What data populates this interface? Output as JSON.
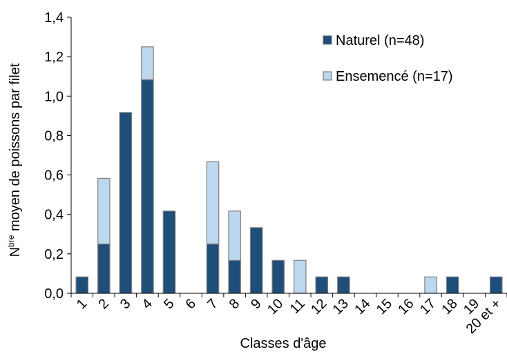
{
  "chart_data": {
    "type": "bar",
    "stacked": true,
    "xlabel": "Classes d'âge",
    "ylabel_prefix": "N",
    "ylabel_superscript": "bre",
    "ylabel_suffix": " moyen de poissons par filet",
    "ylim": [
      0,
      1.4
    ],
    "yticks": [
      "0,0",
      "0,2",
      "0,4",
      "0,6",
      "0,8",
      "1,0",
      "1,2",
      "1,4"
    ],
    "yticks_values": [
      0,
      0.2,
      0.4,
      0.6,
      0.8,
      1.0,
      1.2,
      1.4
    ],
    "grid": false,
    "legend_position": "top-right",
    "categories": [
      "1",
      "2",
      "3",
      "4",
      "5",
      "6",
      "7",
      "8",
      "9",
      "10",
      "11",
      "12",
      "13",
      "14",
      "15",
      "16",
      "17",
      "18",
      "19",
      "20 et +"
    ],
    "series": [
      {
        "name": "Naturel (n=48)",
        "color": "#1F4E79",
        "values": [
          0.083,
          0.25,
          0.917,
          1.083,
          0.417,
          0,
          0.25,
          0.167,
          0.333,
          0.167,
          0,
          0.083,
          0.083,
          0,
          0,
          0,
          0,
          0.083,
          0,
          0.083
        ]
      },
      {
        "name": "Ensemencé (n=17)",
        "color": "#BDD7EE",
        "values": [
          0,
          0.333,
          0,
          0.167,
          0,
          0,
          0.417,
          0.25,
          0,
          0,
          0.167,
          0,
          0,
          0,
          0,
          0,
          0.083,
          0,
          0,
          0
        ]
      }
    ]
  }
}
